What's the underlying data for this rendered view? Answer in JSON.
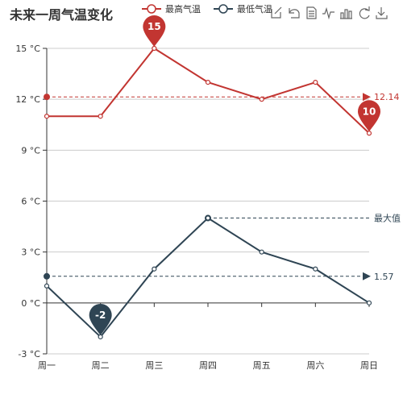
{
  "title": "未来一周气温变化",
  "toolbox_icons": [
    "mark-point-icon",
    "restore-icon",
    "data-view-icon",
    "line-chart-icon",
    "bar-chart-icon",
    "refresh-icon",
    "save-image-icon"
  ],
  "colors": {
    "max": "#c23531",
    "min": "#2f4554",
    "axis": "#333333",
    "grid": "#cccccc"
  },
  "chart_data": {
    "type": "line",
    "title": "未来一周气温变化",
    "categories": [
      "周一",
      "周二",
      "周三",
      "周四",
      "周五",
      "周六",
      "周日"
    ],
    "ylim": [
      -3,
      15
    ],
    "yticks": [
      -3,
      0,
      3,
      6,
      9,
      12,
      15
    ],
    "yticklabels": [
      "-3 °C",
      "0 °C",
      "3 °C",
      "6 °C",
      "9 °C",
      "12 °C",
      "15 °C"
    ],
    "grid": true,
    "legend": "top",
    "series": [
      {
        "name": "最高气温",
        "values": [
          11,
          11,
          15,
          13,
          12,
          13,
          10
        ],
        "mark_points": [
          {
            "label": "15",
            "x": "周三",
            "y": 15
          },
          {
            "label": "10",
            "x": "周日",
            "y": 10
          }
        ],
        "mark_line": {
          "label": "12.14",
          "y": 12.14
        }
      },
      {
        "name": "最低气温",
        "values": [
          1,
          -2,
          2,
          5,
          3,
          2,
          0
        ],
        "mark_points": [
          {
            "label": "-2",
            "x": "周二",
            "y": -2
          }
        ],
        "mark_line": {
          "label": "1.57",
          "y": 1.57
        },
        "max_line": {
          "label": "最大值",
          "y": 5,
          "from": "周四"
        }
      }
    ]
  }
}
